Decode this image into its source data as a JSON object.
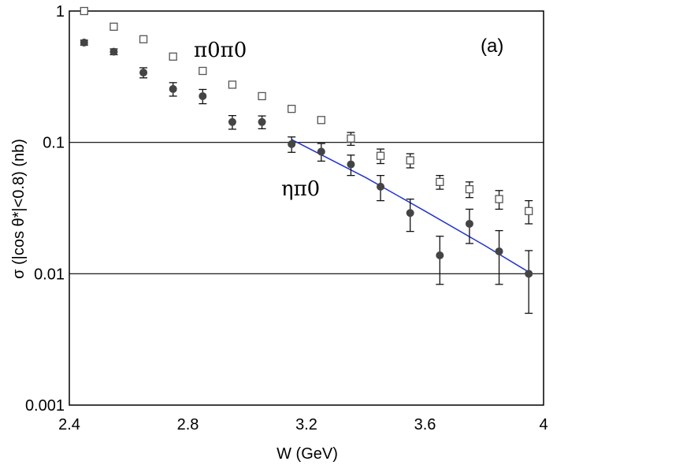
{
  "chart_data": {
    "type": "scatter",
    "xlabel": "W (GeV)",
    "ylabel": "σ (|cos θ*|<0.8) (nb)",
    "xlim": [
      2.4,
      4.0
    ],
    "ylim": [
      0.001,
      1
    ],
    "yscale": "log",
    "x_ticks": [
      "2.4",
      "2.8",
      "3.2",
      "3.6",
      "4"
    ],
    "y_ticks": [
      "1",
      "0.1",
      "0.01",
      "0.001"
    ],
    "gridlines_y": [
      0.1,
      0.01
    ],
    "panel_label": "(a)",
    "series": [
      {
        "name": "π0π0",
        "marker": "open-square",
        "x": [
          2.45,
          2.55,
          2.65,
          2.75,
          2.85,
          2.95,
          3.05,
          3.15,
          3.25,
          3.35,
          3.45,
          3.55,
          3.65,
          3.75,
          3.85,
          3.95
        ],
        "y": [
          1.0,
          0.76,
          0.61,
          0.45,
          0.35,
          0.275,
          0.225,
          0.18,
          0.148,
          0.107,
          0.079,
          0.073,
          0.05,
          0.044,
          0.037,
          0.03
        ],
        "err_low": [
          0,
          0,
          0,
          0,
          0,
          0,
          0,
          0.006,
          0.007,
          0.012,
          0.01,
          0.009,
          0.006,
          0.006,
          0.006,
          0.006
        ],
        "err_high": [
          0,
          0,
          0,
          0,
          0,
          0,
          0,
          0.006,
          0.007,
          0.012,
          0.01,
          0.009,
          0.006,
          0.006,
          0.006,
          0.006
        ]
      },
      {
        "name": "ηπ0",
        "marker": "filled-circle",
        "x": [
          2.45,
          2.55,
          2.65,
          2.75,
          2.85,
          2.95,
          3.05,
          3.15,
          3.25,
          3.35,
          3.45,
          3.55,
          3.65,
          3.75,
          3.85,
          3.95
        ],
        "y": [
          0.575,
          0.49,
          0.34,
          0.255,
          0.225,
          0.143,
          0.143,
          0.097,
          0.085,
          0.068,
          0.046,
          0.029,
          0.0138,
          0.024,
          0.0148,
          0.01
        ],
        "err_low": [
          0.025,
          0.025,
          0.03,
          0.03,
          0.028,
          0.017,
          0.016,
          0.013,
          0.013,
          0.012,
          0.01,
          0.008,
          0.0055,
          0.007,
          0.0065,
          0.005
        ],
        "err_high": [
          0.025,
          0.025,
          0.03,
          0.03,
          0.028,
          0.017,
          0.016,
          0.013,
          0.013,
          0.012,
          0.01,
          0.008,
          0.0055,
          0.007,
          0.0065,
          0.005
        ]
      }
    ],
    "fit_curve": {
      "name": "ηπ0 fit",
      "color": "#2233cc",
      "x": [
        3.15,
        3.4,
        3.6,
        3.8,
        3.95
      ],
      "y": [
        0.105,
        0.054,
        0.03,
        0.0165,
        0.0103
      ]
    },
    "annotations": [
      {
        "text": "π0π0",
        "series": "π0π0"
      },
      {
        "text": "ηπ0",
        "series": "ηπ0"
      }
    ],
    "colors": {
      "frame": "#000000",
      "marker_filled": "#444444",
      "marker_open_edge": "#555555",
      "errorbar": "#111111",
      "fit": "#2233cc"
    }
  }
}
